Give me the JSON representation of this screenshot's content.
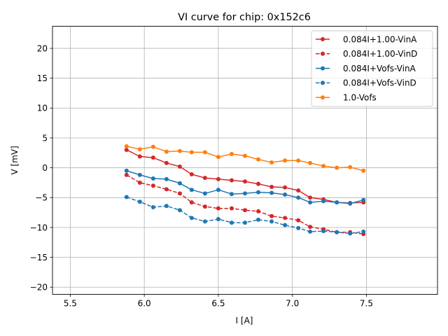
{
  "chart_data": {
    "type": "line",
    "title": "VI curve for chip: 0x152c6",
    "xlabel": "I [A]",
    "ylabel": "V [mV]",
    "xlim": [
      5.38,
      7.98
    ],
    "ylim": [
      -21.2,
      23.7
    ],
    "xticks": [
      5.5,
      6.0,
      6.5,
      7.0,
      7.5
    ],
    "xtick_labels": [
      "5.5",
      "6.0",
      "6.5",
      "7.0",
      "7.5"
    ],
    "yticks": [
      -20,
      -15,
      -10,
      -5,
      0,
      5,
      10,
      15,
      20
    ],
    "ytick_labels": [
      "−20",
      "−15",
      "−10",
      "−5",
      "0",
      "5",
      "10",
      "15",
      "20"
    ],
    "grid": true,
    "legend_position": "top-right",
    "x": [
      5.88,
      5.97,
      6.06,
      6.15,
      6.24,
      6.32,
      6.41,
      6.5,
      6.59,
      6.68,
      6.77,
      6.86,
      6.95,
      7.04,
      7.12,
      7.21,
      7.3,
      7.39,
      7.48
    ],
    "series": [
      {
        "name": "0.084I+1.00-VinA",
        "color": "#d62728",
        "dash": "solid",
        "values": [
          3.0,
          1.9,
          1.7,
          0.8,
          0.2,
          -1.1,
          -1.7,
          -1.9,
          -2.1,
          -2.3,
          -2.7,
          -3.2,
          -3.3,
          -3.8,
          -5.0,
          -5.3,
          -5.8,
          -5.9,
          -5.8
        ]
      },
      {
        "name": "0.084I+1.00-VinD",
        "color": "#d62728",
        "dash": "dashed",
        "values": [
          -1.2,
          -2.5,
          -3.0,
          -3.6,
          -4.3,
          -5.8,
          -6.5,
          -6.8,
          -6.8,
          -7.1,
          -7.3,
          -8.1,
          -8.4,
          -8.8,
          -9.9,
          -10.3,
          -10.8,
          -10.8,
          -11.1
        ]
      },
      {
        "name": "0.084I+Vofs-VinA",
        "color": "#1f77b4",
        "dash": "solid",
        "values": [
          -0.5,
          -1.2,
          -1.8,
          -1.9,
          -2.6,
          -3.7,
          -4.3,
          -3.7,
          -4.4,
          -4.3,
          -4.1,
          -4.2,
          -4.5,
          -5.0,
          -5.8,
          -5.6,
          -5.8,
          -6.0,
          -5.4
        ]
      },
      {
        "name": "0.084I+Vofs-VinD",
        "color": "#1f77b4",
        "dash": "dashed",
        "values": [
          -4.9,
          -5.7,
          -6.6,
          -6.4,
          -7.1,
          -8.4,
          -9.0,
          -8.6,
          -9.2,
          -9.2,
          -8.7,
          -9.0,
          -9.6,
          -10.1,
          -10.7,
          -10.6,
          -10.8,
          -11.0,
          -10.7
        ]
      },
      {
        "name": "1.0-Vofs",
        "color": "#ff7f0e",
        "dash": "solid",
        "values": [
          3.6,
          3.1,
          3.5,
          2.7,
          2.8,
          2.6,
          2.6,
          1.8,
          2.3,
          2.0,
          1.4,
          0.9,
          1.2,
          1.2,
          0.8,
          0.3,
          0.0,
          0.1,
          -0.5
        ]
      }
    ]
  }
}
